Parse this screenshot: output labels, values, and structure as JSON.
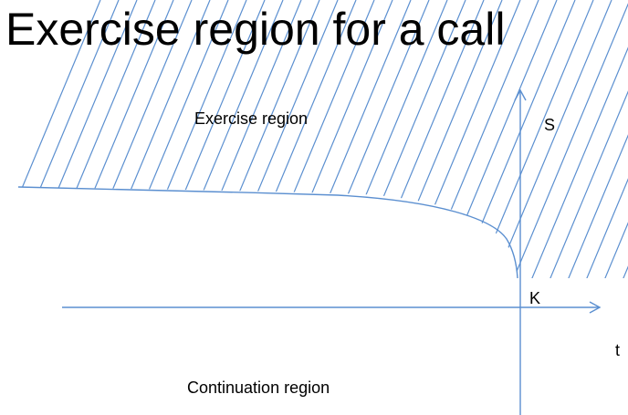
{
  "title": "Exercise region for a call",
  "labels": {
    "exercise_region": "Exercise region",
    "continuation_region": "Continuation region",
    "s_axis": "S",
    "t_axis": "t",
    "strike": "K"
  },
  "colors": {
    "line": "#5b8fd0",
    "text": "#000000",
    "background": "#ffffff"
  }
}
